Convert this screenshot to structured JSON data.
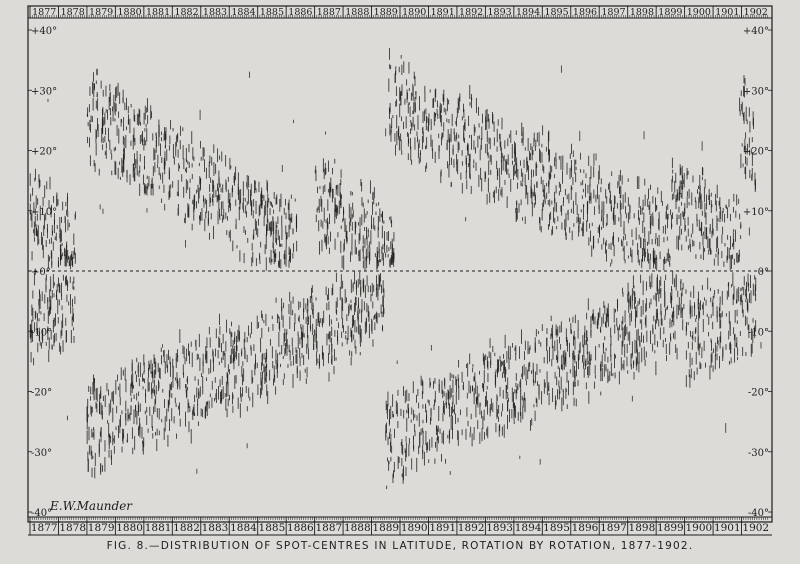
{
  "caption": "FIG. 8.—DISTRIBUTION OF SPOT-CENTRES IN LATITUDE, ROTATION BY ROTATION, 1877-1902.",
  "signature": "E.W.Maunder",
  "colors": {
    "paper": "#dcdbd7",
    "ink": "#1c1c1c"
  },
  "chart_data": {
    "type": "scatter",
    "title": "",
    "xlabel": "",
    "ylabel": "",
    "x_ticks": [
      "1877",
      "1878",
      "1879",
      "1880",
      "1881",
      "1882",
      "1883",
      "1884",
      "1885",
      "1886",
      "1887",
      "1888",
      "1889",
      "1890",
      "1891",
      "1892",
      "1893",
      "1894",
      "1895",
      "1896",
      "1897",
      "1898",
      "1899",
      "1900",
      "1901",
      "1902"
    ],
    "y_ticks_left": [
      "+40°",
      "+30°",
      "+20°",
      "+10°",
      "+0°",
      "-10°",
      "-20°",
      "-30°",
      "-40°"
    ],
    "y_ticks_right": [
      "+40°",
      "+30°",
      "+20°",
      "+10°",
      "0°",
      "-10°",
      "-20°",
      "-30°",
      "-40°"
    ],
    "ylim": [
      -40,
      40
    ],
    "xlim": [
      1877,
      1903
    ],
    "equator_dashed": true,
    "mark": "short vertical stroke per spot-centre",
    "series": [
      {
        "name": "",
        "points_summary": "northern-hemisphere spot latitudes per rotation",
        "clusters": [
          {
            "from": 1877.0,
            "to": 1878.6,
            "lat_start": 10,
            "lat_end": 4
          },
          {
            "from": 1879.0,
            "to": 1886.4,
            "lat_start": 26,
            "lat_end": 4
          },
          {
            "from": 1887.0,
            "to": 1889.8,
            "lat_start": 12,
            "lat_end": 3
          },
          {
            "from": 1889.6,
            "to": 1899.5,
            "lat_start": 28,
            "lat_end": 4
          },
          {
            "from": 1899.5,
            "to": 1902.0,
            "lat_start": 12,
            "lat_end": 5
          },
          {
            "from": 1901.9,
            "to": 1902.5,
            "lat_start": 26,
            "lat_end": 20
          }
        ]
      },
      {
        "name": "",
        "points_summary": "southern-hemisphere spot latitudes per rotation",
        "clusters": [
          {
            "from": 1877.0,
            "to": 1878.6,
            "lat_start": -10,
            "lat_end": -5
          },
          {
            "from": 1879.0,
            "to": 1889.5,
            "lat_start": -26,
            "lat_end": -5
          },
          {
            "from": 1889.5,
            "to": 1900.0,
            "lat_start": -28,
            "lat_end": -6
          },
          {
            "from": 1900.0,
            "to": 1902.5,
            "lat_start": -12,
            "lat_end": -7
          }
        ]
      }
    ]
  }
}
